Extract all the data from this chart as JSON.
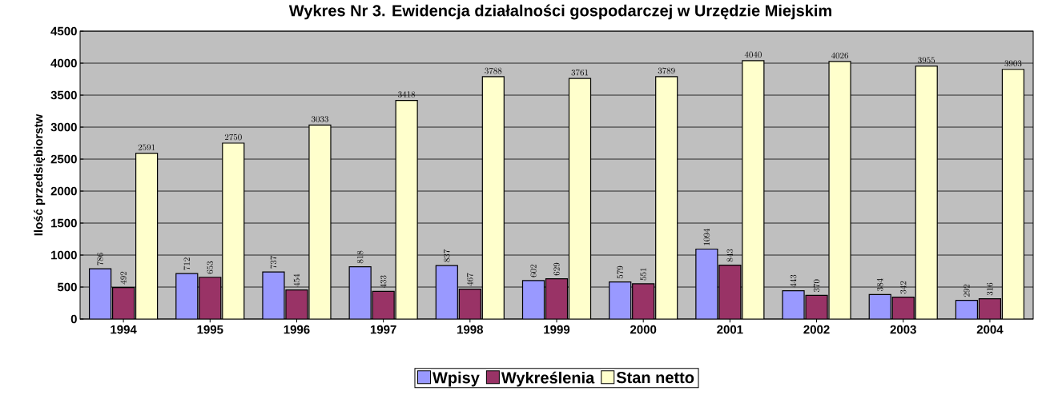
{
  "chart_data": {
    "type": "bar",
    "title": "Wykres Nr 3. Ewidencja działalności gospodarczej w Urzędzie Miejskim",
    "ylabel": "Ilość przedsiębiorstw",
    "categories": [
      "1994",
      "1995",
      "1996",
      "1997",
      "1998",
      "1999",
      "2000",
      "2001",
      "2002",
      "2003",
      "2004"
    ],
    "series": [
      {
        "name": "Wpisy",
        "color": "#9999ff",
        "values": [
          786,
          712,
          737,
          818,
          837,
          602,
          579,
          1094,
          443,
          384,
          292
        ]
      },
      {
        "name": "Wykreślenia",
        "color": "#993366",
        "values": [
          492,
          653,
          454,
          433,
          467,
          629,
          551,
          843,
          370,
          342,
          316
        ]
      },
      {
        "name": "Stan netto",
        "color": "#ffffcc",
        "values": [
          2591,
          2750,
          3033,
          3418,
          3788,
          3761,
          3789,
          4040,
          4026,
          3955,
          3903
        ]
      }
    ],
    "ylim": [
      0,
      4500
    ],
    "yticks": [
      0,
      500,
      1000,
      1500,
      2000,
      2500,
      3000,
      3500,
      4000,
      4500
    ],
    "grid": "y",
    "legend": "bottom",
    "data_labels": true
  }
}
